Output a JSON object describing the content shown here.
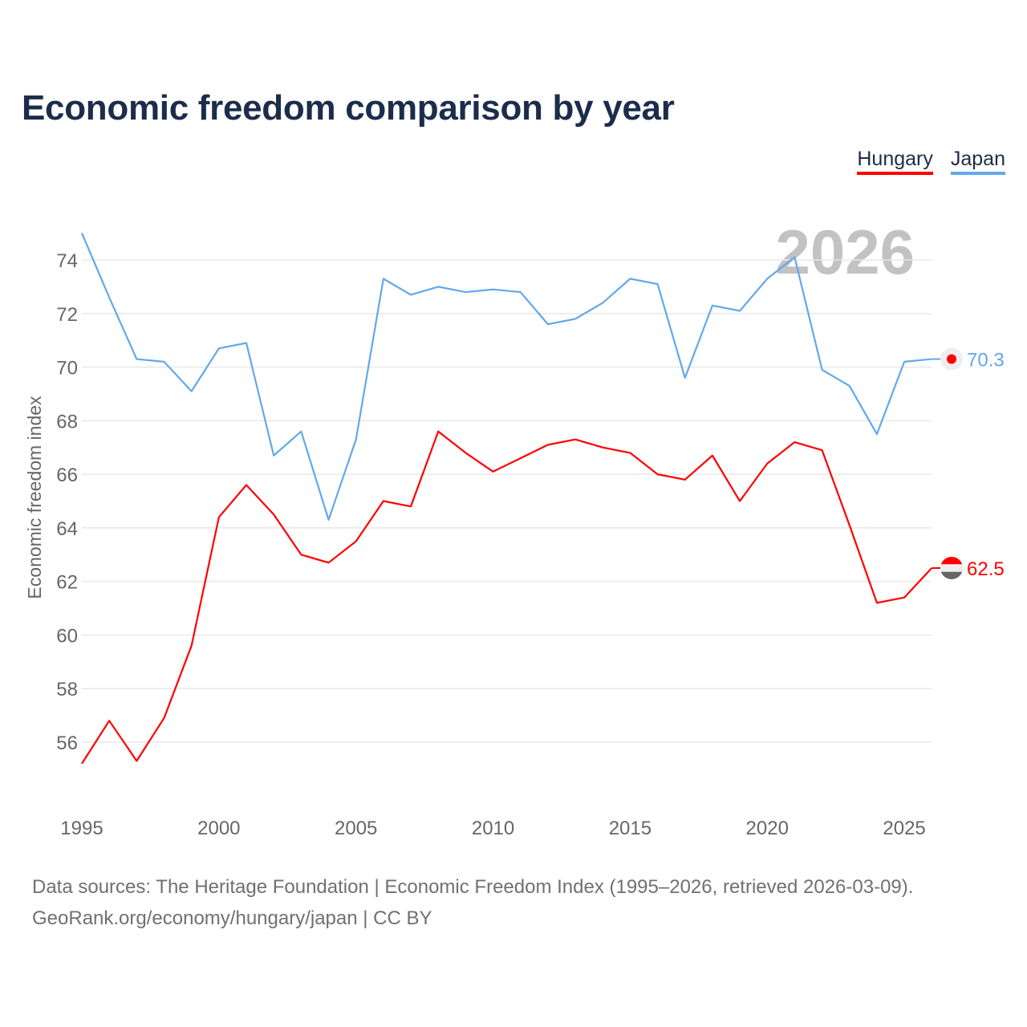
{
  "title": "Economic freedom comparison by year",
  "legend": [
    {
      "label": "Hungary",
      "color": "#ff0000"
    },
    {
      "label": "Japan",
      "color": "#62a8ec"
    }
  ],
  "footer": {
    "line1": "Data sources: The Heritage Foundation | Economic Freedom Index (1995–2026, retrieved 2026-03-09).",
    "line2": "GeoRank.org/economy/hungary/japan | CC BY"
  },
  "chart_data": {
    "type": "line",
    "title": "Economic freedom comparison by year",
    "xlabel": "",
    "ylabel": "Economic freedom index",
    "year_watermark": "2026",
    "xlim": [
      1995,
      2026
    ],
    "ylim": [
      54,
      75.5
    ],
    "xticks": [
      1995,
      2000,
      2005,
      2010,
      2015,
      2020,
      2025
    ],
    "yticks": [
      56,
      58,
      60,
      62,
      64,
      66,
      68,
      70,
      72,
      74
    ],
    "grid": true,
    "legend_position": "top-right",
    "x": [
      1995,
      1996,
      1997,
      1998,
      1999,
      2000,
      2001,
      2002,
      2003,
      2004,
      2005,
      2006,
      2007,
      2008,
      2009,
      2010,
      2011,
      2012,
      2013,
      2014,
      2015,
      2016,
      2017,
      2018,
      2019,
      2020,
      2021,
      2022,
      2023,
      2024,
      2025,
      2026
    ],
    "series": [
      {
        "name": "Hungary",
        "color": "#ff0000",
        "end_label": "62.5",
        "values": [
          55.2,
          56.8,
          55.3,
          56.9,
          59.6,
          64.4,
          65.6,
          64.5,
          63.0,
          62.7,
          63.5,
          65.0,
          64.8,
          67.6,
          66.8,
          66.1,
          66.6,
          67.1,
          67.3,
          67.0,
          66.8,
          66.0,
          65.8,
          66.7,
          65.0,
          66.4,
          67.2,
          66.9,
          64.1,
          61.2,
          61.4,
          62.5
        ]
      },
      {
        "name": "Japan",
        "color": "#62a8ec",
        "end_label": "70.3",
        "values": [
          75.0,
          72.6,
          70.3,
          70.2,
          69.1,
          70.7,
          70.9,
          66.7,
          67.6,
          64.3,
          67.3,
          73.3,
          72.7,
          73.0,
          72.8,
          72.9,
          72.8,
          71.6,
          71.8,
          72.4,
          73.3,
          73.1,
          69.6,
          72.3,
          72.1,
          73.3,
          74.1,
          69.9,
          69.3,
          67.5,
          70.2,
          70.3
        ]
      }
    ]
  }
}
